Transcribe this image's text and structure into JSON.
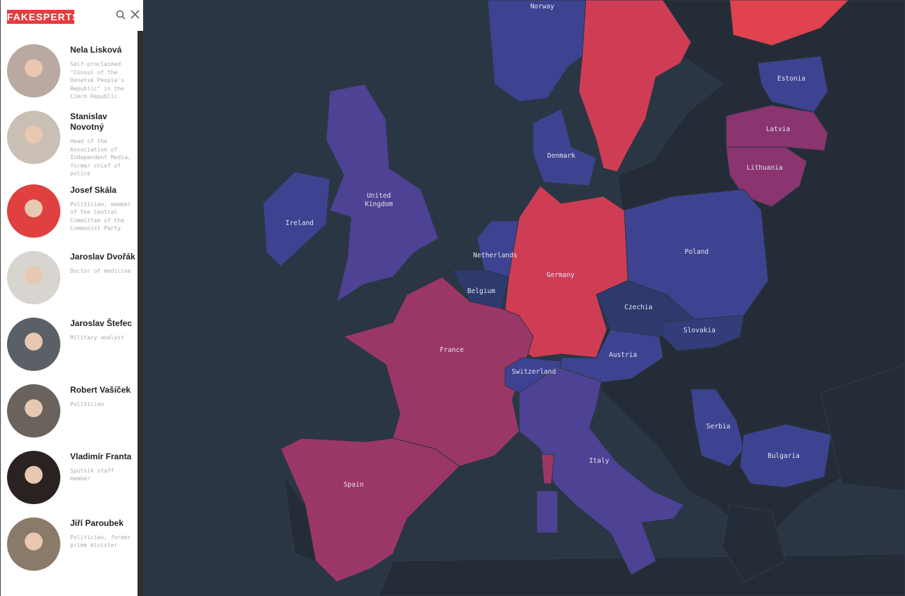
{
  "header": {
    "logo": "FAKESPERTS",
    "search_icon": "search-icon",
    "close_icon": "close-icon"
  },
  "people": [
    {
      "name": "Nela Lisková",
      "desc": "Self-proclaimed \"Consul of the Donetsk People's Republic\" in the Czech Republic",
      "photo_bg": "#b9a9a0"
    },
    {
      "name": "Stanislav Novotný",
      "desc": "Head of the Association of Independent Media, former chief of police",
      "photo_bg": "#c9bfb4"
    },
    {
      "name": "Josef Skála",
      "desc": "Politician, member of the Central Committee of the Communist Party",
      "photo_bg": "#e04040"
    },
    {
      "name": "Jaroslav Dvořák",
      "desc": "Doctor of medicine",
      "photo_bg": "#d8d4d0"
    },
    {
      "name": "Jaroslav Štefec",
      "desc": "Military analyst",
      "photo_bg": "#5a6066"
    },
    {
      "name": "Robert Vašíček",
      "desc": "Politician",
      "photo_bg": "#6a625c"
    },
    {
      "name": "Vladimír Franta",
      "desc": "Sputnik staff member",
      "photo_bg": "#2a2220"
    },
    {
      "name": "Jiří Paroubek",
      "desc": "Politician, former prime minister",
      "photo_bg": "#8a7a6a"
    }
  ],
  "map": {
    "colors": {
      "sea": "#2b3644",
      "land": "#242c38",
      "red": "#cf3d55",
      "magenta": "#9b3767",
      "purple": "#4d4293",
      "blue": "#3e4391",
      "navy": "#2e3a6e",
      "plum": "#8a3470"
    },
    "countries": {
      "norway": "Norway",
      "uk": "United Kingdom",
      "ireland": "Ireland",
      "denmark": "Denmark",
      "netherlands": "Netherlands",
      "belgium": "Belgium",
      "germany": "Germany",
      "france": "France",
      "spain": "Spain",
      "switzerland": "Switzerland",
      "italy": "Italy",
      "austria": "Austria",
      "czechia": "Czechia",
      "slovakia": "Slovakia",
      "poland": "Poland",
      "estonia": "Estonia",
      "latvia": "Latvia",
      "lithuania": "Lithuania",
      "serbia": "Serbia",
      "bulgaria": "Bulgaria"
    }
  }
}
